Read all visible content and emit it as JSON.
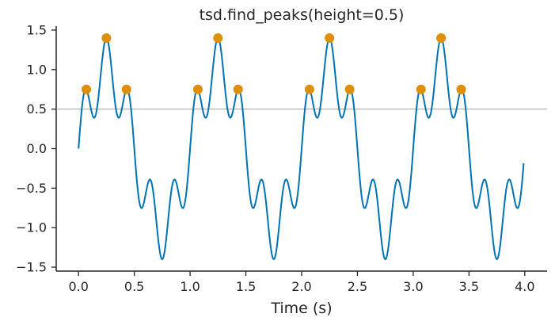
{
  "chart_data": {
    "type": "line",
    "title": "tsd.find_peaks(height=0.5)",
    "xlabel": "Time (s)",
    "ylabel": "",
    "xlim": [
      -0.2,
      4.2
    ],
    "ylim": [
      -1.55,
      1.55
    ],
    "x_ticks": [
      0.0,
      0.5,
      1.0,
      1.5,
      2.0,
      2.5,
      3.0,
      3.5,
      4.0
    ],
    "x_tick_labels": [
      "0.0",
      "0.5",
      "1.0",
      "1.5",
      "2.0",
      "2.5",
      "3.0",
      "3.5",
      "4.0"
    ],
    "y_ticks": [
      -1.5,
      -1.0,
      -0.5,
      0.0,
      0.5,
      1.0,
      1.5
    ],
    "y_tick_labels": [
      "−1.5",
      "−1.0",
      "−0.5",
      "0.0",
      "0.5",
      "1.0",
      "1.5"
    ],
    "threshold": 0.5,
    "signal": {
      "x_start": 0.0,
      "x_end": 3.99,
      "components": [
        {
          "amplitude": 1.0,
          "frequency_hz": 1
        },
        {
          "amplitude": 0.4,
          "frequency_hz": 5
        }
      ]
    },
    "peaks": {
      "x": [
        0.07,
        0.25,
        0.43,
        1.07,
        1.25,
        1.43,
        2.07,
        2.25,
        2.43,
        3.07,
        3.25,
        3.43
      ],
      "y": [
        0.75,
        1.4,
        0.75,
        0.75,
        1.4,
        0.75,
        0.75,
        1.4,
        0.75,
        0.75,
        1.4,
        0.75
      ]
    },
    "grid": false,
    "legend": "none",
    "colors": {
      "line": "#0173b2",
      "peaks": "#de8f05",
      "threshold": "#a0a0a0",
      "axis": "#262626"
    }
  }
}
